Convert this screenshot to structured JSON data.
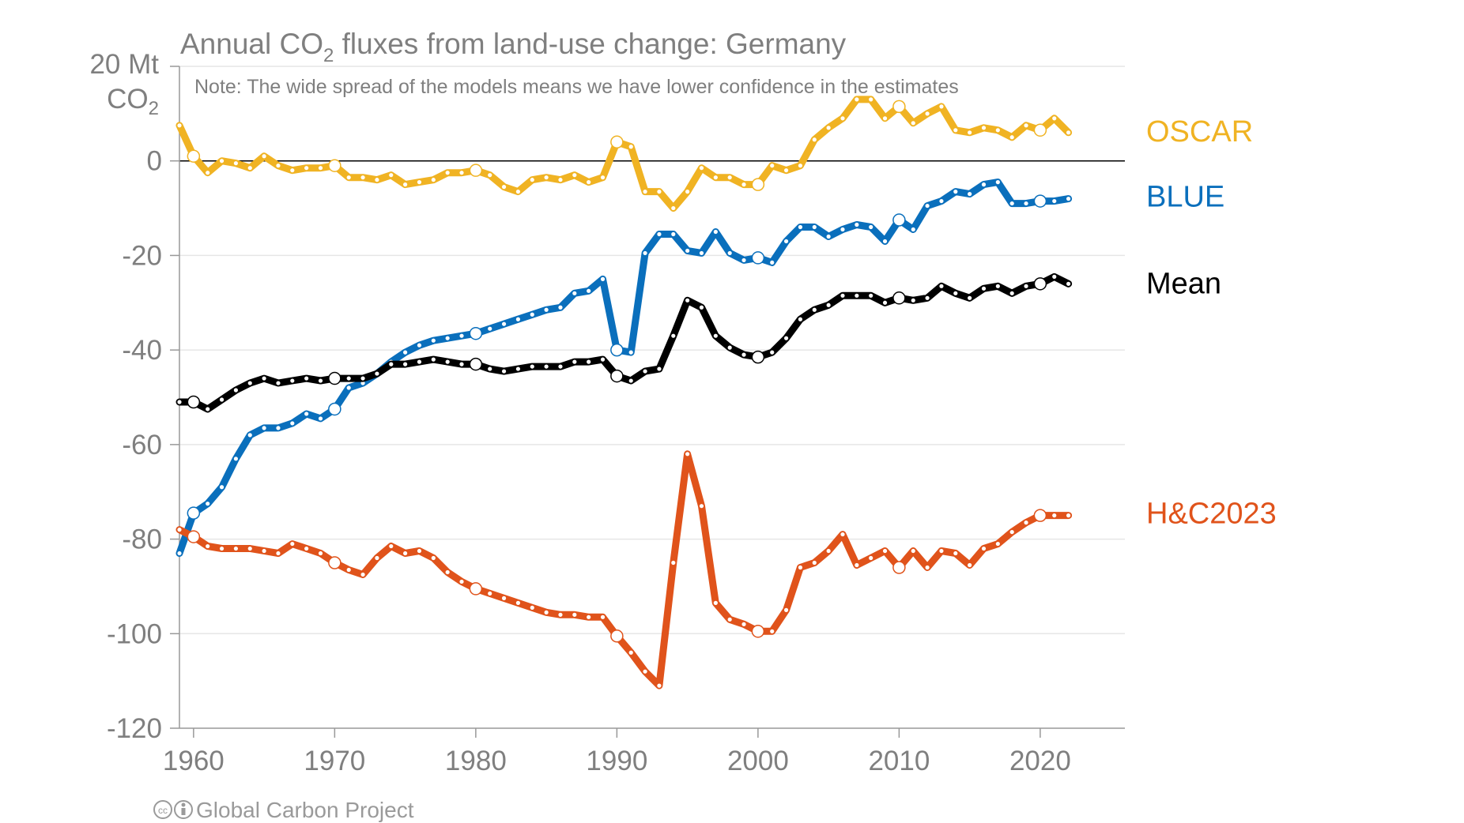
{
  "chart_data": {
    "type": "line",
    "title_prefix": "Annual CO",
    "title_sub": "2",
    "title_suffix": " fluxes from land-use change: Germany",
    "note": "Note: The wide spread of the models means we have lower confidence in the estimates",
    "ylabel_line1": "20 Mt",
    "ylabel_line2_prefix": "CO",
    "ylabel_line2_sub": "2",
    "ylim": [
      -120,
      20
    ],
    "xlim": [
      1959,
      2026
    ],
    "yticks": [
      {
        "value": 0,
        "label": "0"
      },
      {
        "value": -20,
        "label": "-20"
      },
      {
        "value": -40,
        "label": "-40"
      },
      {
        "value": -60,
        "label": "-60"
      },
      {
        "value": -80,
        "label": "-80"
      },
      {
        "value": -100,
        "label": "-100"
      },
      {
        "value": -120,
        "label": "-120"
      }
    ],
    "xticks": [
      {
        "value": 1960,
        "label": "1960"
      },
      {
        "value": 1970,
        "label": "1970"
      },
      {
        "value": 1980,
        "label": "1980"
      },
      {
        "value": 1990,
        "label": "1990"
      },
      {
        "value": 2000,
        "label": "2000"
      },
      {
        "value": 2010,
        "label": "2010"
      },
      {
        "value": 2020,
        "label": "2020"
      }
    ],
    "gridlines": true,
    "legend_placement": "right",
    "x": [
      1959,
      1960,
      1961,
      1962,
      1963,
      1964,
      1965,
      1966,
      1967,
      1968,
      1969,
      1970,
      1971,
      1972,
      1973,
      1974,
      1975,
      1976,
      1977,
      1978,
      1979,
      1980,
      1981,
      1982,
      1983,
      1984,
      1985,
      1986,
      1987,
      1988,
      1989,
      1990,
      1991,
      1992,
      1993,
      1994,
      1995,
      1996,
      1997,
      1998,
      1999,
      2000,
      2001,
      2002,
      2003,
      2004,
      2005,
      2006,
      2007,
      2008,
      2009,
      2010,
      2011,
      2012,
      2013,
      2014,
      2015,
      2016,
      2017,
      2018,
      2019,
      2020,
      2021,
      2022
    ],
    "series": [
      {
        "name": "OSCAR",
        "color": "#F0B323",
        "values": [
          7.5,
          1,
          -2.5,
          0,
          -0.5,
          -1.5,
          1,
          -1,
          -2,
          -1.5,
          -1.5,
          -1,
          -3.5,
          -3.5,
          -4,
          -3,
          -5,
          -4.5,
          -4,
          -2.5,
          -2.5,
          -2,
          -3,
          -5.5,
          -6.5,
          -4,
          -3.5,
          -4,
          -3,
          -4.5,
          -3.5,
          4,
          3,
          -6.5,
          -6.5,
          -10,
          -6.5,
          -1.5,
          -3.5,
          -3.5,
          -5,
          -5,
          -1,
          -2,
          -1,
          4.5,
          7,
          9,
          13,
          13,
          9,
          11.5,
          8,
          10,
          11.5,
          6.5,
          6,
          7,
          6.5,
          5,
          7.5,
          6.5,
          9,
          6
        ]
      },
      {
        "name": "BLUE",
        "color": "#0A6FBC",
        "values": [
          -83,
          -74.5,
          -72.5,
          -69,
          -63,
          -58,
          -56.5,
          -56.5,
          -55.5,
          -53.5,
          -54.5,
          -52.5,
          -48,
          -47,
          -45,
          -42.5,
          -40.5,
          -39,
          -38,
          -37.5,
          -37,
          -36.5,
          -35.5,
          -34.5,
          -33.5,
          -32.5,
          -31.5,
          -31,
          -28,
          -27.5,
          -25,
          -40,
          -40.5,
          -19.5,
          -15.5,
          -15.5,
          -19,
          -19.5,
          -15,
          -19.5,
          -21,
          -20.5,
          -21.5,
          -17,
          -14,
          -14,
          -16,
          -14.5,
          -13.5,
          -14,
          -17,
          -12.5,
          -14.5,
          -9.5,
          -8.5,
          -6.5,
          -7,
          -5,
          -4.5,
          -9,
          -9,
          -8.5,
          -8.5,
          -8
        ]
      },
      {
        "name": "Mean",
        "color": "#000000",
        "values": [
          -51,
          -51,
          -52.5,
          -50.5,
          -48.5,
          -47,
          -46,
          -47,
          -46.5,
          -46,
          -46.5,
          -46,
          -46,
          -46,
          -45,
          -43,
          -43,
          -42.5,
          -42,
          -42.5,
          -43,
          -43,
          -44,
          -44.5,
          -44,
          -43.5,
          -43.5,
          -43.5,
          -42.5,
          -42.5,
          -42,
          -45.5,
          -46.5,
          -44.5,
          -44,
          -37,
          -29.5,
          -31,
          -37,
          -39.5,
          -41,
          -41.5,
          -40.5,
          -37.5,
          -33.5,
          -31.5,
          -30.5,
          -28.5,
          -28.5,
          -28.5,
          -30,
          -29,
          -29.5,
          -29,
          -26.5,
          -28,
          -29,
          -27,
          -26.5,
          -28,
          -26.5,
          -26,
          -24.5,
          -26
        ]
      },
      {
        "name": "H&C2023",
        "color": "#E0531B",
        "values": [
          -78,
          -79.5,
          -81.5,
          -82,
          -82,
          -82,
          -82.5,
          -83,
          -81,
          -82,
          -83,
          -85,
          -86.5,
          -87.5,
          -84,
          -81.5,
          -83,
          -82.5,
          -84,
          -87,
          -89,
          -90.5,
          -91.5,
          -92.5,
          -93.5,
          -94.5,
          -95.5,
          -96,
          -96,
          -96.5,
          -96.5,
          -100.5,
          -104,
          -108,
          -111,
          -85,
          -62,
          -73,
          -93.5,
          -97,
          -98,
          -99.5,
          -99.5,
          -95,
          -86,
          -85,
          -82.5,
          -79,
          -85.5,
          -84,
          -82.5,
          -86,
          -82.5,
          -86,
          -82.5,
          -83,
          -85.5,
          -82,
          -81,
          -78.5,
          -76.5,
          -75,
          -75,
          -75
        ]
      }
    ]
  },
  "footer": {
    "text": "Global Carbon Project",
    "icon": "creative-commons-icon"
  }
}
